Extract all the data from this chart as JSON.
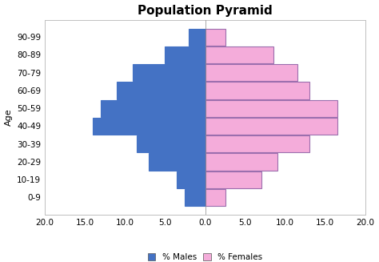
{
  "age_groups": [
    "0-9",
    "10-19",
    "20-29",
    "30-39",
    "40-49",
    "50-59",
    "60-69",
    "70-79",
    "80-89",
    "90-99"
  ],
  "males": [
    2.5,
    3.5,
    7.0,
    8.5,
    14.0,
    13.0,
    11.0,
    9.0,
    5.0,
    2.0
  ],
  "females": [
    2.5,
    7.0,
    9.0,
    13.0,
    16.5,
    16.5,
    13.0,
    11.5,
    8.5,
    2.5
  ],
  "male_color": "#4472C4",
  "female_color": "#F4ACDA",
  "male_edge": "#4472C4",
  "female_edge": "#9B6FAE",
  "title": "Population Pyramid",
  "ylabel": "Age",
  "xlim": [
    -20,
    20
  ],
  "xticks": [
    -20,
    -15,
    -10,
    -5,
    0,
    5,
    10,
    15,
    20
  ],
  "xticklabels": [
    "20.0",
    "15.0",
    "10.0",
    "5.0",
    "0.0",
    "5.0",
    "10.0",
    "15.0",
    "20.0"
  ],
  "legend_male": "% Males",
  "legend_female": "% Females",
  "bar_height": 0.95,
  "title_fontsize": 11,
  "axis_fontsize": 8,
  "tick_fontsize": 7.5,
  "background_color": "#ffffff"
}
